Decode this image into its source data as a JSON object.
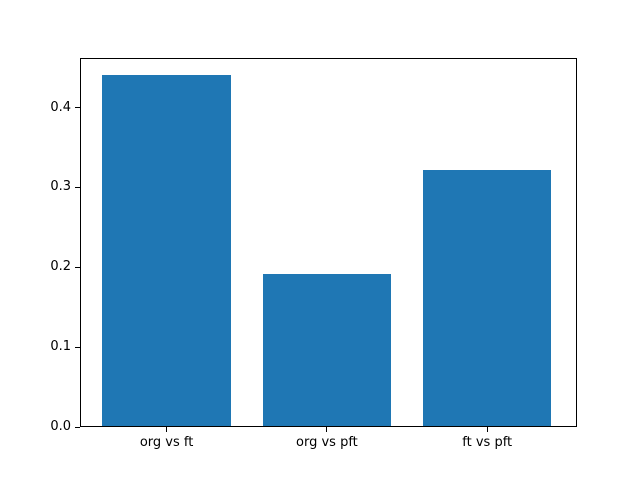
{
  "figure": {
    "background": "#ffffff",
    "frame_color": "#000000",
    "text_color": "#000000"
  },
  "chart_data": {
    "type": "bar",
    "categories": [
      "org vs ft",
      "org vs pft",
      "ft vs pft"
    ],
    "values": [
      0.44,
      0.19,
      0.32
    ],
    "title": "",
    "xlabel": "",
    "ylabel": "",
    "bar_color": "#1f77b4",
    "bar_width_fraction": 0.8,
    "xlim": [
      -0.54,
      2.56
    ],
    "ylim": [
      0,
      0.462
    ],
    "yticks": [
      0.0,
      0.1,
      0.2,
      0.3,
      0.4
    ],
    "ytick_labels": [
      "0.0",
      "0.1",
      "0.2",
      "0.3",
      "0.4"
    ],
    "grid": false,
    "legend": "none"
  }
}
